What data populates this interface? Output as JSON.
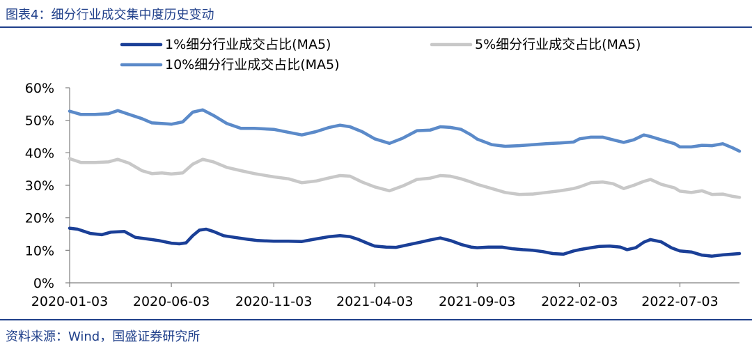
{
  "figure": {
    "title": "图表4：细分行业成交集中度历史变动",
    "source": "资料来源：Wind，国盛证券研究所"
  },
  "colors": {
    "accent": "#1f3f8a",
    "series_1pct": "#1a3f97",
    "series_5pct": "#c8c8c8",
    "series_10pct": "#5b8ac9"
  },
  "chart_data": {
    "type": "line",
    "title": "",
    "xlabel": "",
    "ylabel": "",
    "ylim": [
      0,
      60
    ],
    "yticks": [
      "0%",
      "10%",
      "20%",
      "30%",
      "40%",
      "50%",
      "60%"
    ],
    "xticks": [
      "2020-01-03",
      "2020-06-03",
      "2020-11-03",
      "2021-04-03",
      "2021-09-03",
      "2022-02-03",
      "2022-07-03"
    ],
    "xrange": [
      "2020-01-03",
      "2022-09-30"
    ],
    "legend_position": "top",
    "grid": false,
    "series": [
      {
        "name": "1%细分行业成交占比(MA5)",
        "color": "#1a3f97",
        "points": [
          [
            "2020-01-03",
            16.8
          ],
          [
            "2020-01-15",
            16.5
          ],
          [
            "2020-02-03",
            15.2
          ],
          [
            "2020-02-20",
            14.8
          ],
          [
            "2020-03-05",
            15.6
          ],
          [
            "2020-03-25",
            15.8
          ],
          [
            "2020-04-10",
            14.0
          ],
          [
            "2020-04-28",
            13.5
          ],
          [
            "2020-05-15",
            13.0
          ],
          [
            "2020-06-03",
            12.2
          ],
          [
            "2020-06-15",
            12.0
          ],
          [
            "2020-06-25",
            12.3
          ],
          [
            "2020-07-05",
            14.5
          ],
          [
            "2020-07-15",
            16.2
          ],
          [
            "2020-07-25",
            16.5
          ],
          [
            "2020-08-05",
            15.8
          ],
          [
            "2020-08-20",
            14.5
          ],
          [
            "2020-09-05",
            14.0
          ],
          [
            "2020-09-25",
            13.4
          ],
          [
            "2020-10-10",
            13.0
          ],
          [
            "2020-11-03",
            12.8
          ],
          [
            "2020-11-25",
            12.8
          ],
          [
            "2020-12-15",
            12.7
          ],
          [
            "2021-01-05",
            13.5
          ],
          [
            "2021-01-25",
            14.2
          ],
          [
            "2021-02-10",
            14.5
          ],
          [
            "2021-02-25",
            14.2
          ],
          [
            "2021-03-10",
            13.3
          ],
          [
            "2021-03-25",
            12.0
          ],
          [
            "2021-04-03",
            11.3
          ],
          [
            "2021-04-20",
            11.0
          ],
          [
            "2021-05-05",
            10.9
          ],
          [
            "2021-05-25",
            11.8
          ],
          [
            "2021-06-10",
            12.5
          ],
          [
            "2021-06-25",
            13.2
          ],
          [
            "2021-07-10",
            13.8
          ],
          [
            "2021-07-25",
            13.0
          ],
          [
            "2021-08-10",
            11.8
          ],
          [
            "2021-08-25",
            11.0
          ],
          [
            "2021-09-03",
            10.8
          ],
          [
            "2021-09-20",
            11.0
          ],
          [
            "2021-10-10",
            11.0
          ],
          [
            "2021-10-25",
            10.5
          ],
          [
            "2021-11-10",
            10.2
          ],
          [
            "2021-11-25",
            10.0
          ],
          [
            "2021-12-10",
            9.6
          ],
          [
            "2021-12-25",
            9.0
          ],
          [
            "2022-01-10",
            8.8
          ],
          [
            "2022-01-25",
            9.8
          ],
          [
            "2022-02-03",
            10.2
          ],
          [
            "2022-02-20",
            10.8
          ],
          [
            "2022-03-05",
            11.2
          ],
          [
            "2022-03-20",
            11.3
          ],
          [
            "2022-04-05",
            11.0
          ],
          [
            "2022-04-15",
            10.2
          ],
          [
            "2022-04-28",
            10.8
          ],
          [
            "2022-05-10",
            12.5
          ],
          [
            "2022-05-20",
            13.3
          ],
          [
            "2022-06-05",
            12.6
          ],
          [
            "2022-06-20",
            10.8
          ],
          [
            "2022-07-03",
            9.8
          ],
          [
            "2022-07-20",
            9.5
          ],
          [
            "2022-08-05",
            8.5
          ],
          [
            "2022-08-20",
            8.2
          ],
          [
            "2022-09-05",
            8.6
          ],
          [
            "2022-09-30",
            9.0
          ]
        ]
      },
      {
        "name": "5%细分行业成交占比(MA5)",
        "color": "#c8c8c8",
        "points": [
          [
            "2020-01-03",
            38.2
          ],
          [
            "2020-01-20",
            37.0
          ],
          [
            "2020-02-10",
            37.0
          ],
          [
            "2020-03-01",
            37.2
          ],
          [
            "2020-03-15",
            38.0
          ],
          [
            "2020-04-01",
            36.8
          ],
          [
            "2020-04-20",
            34.5
          ],
          [
            "2020-05-05",
            33.6
          ],
          [
            "2020-05-20",
            33.8
          ],
          [
            "2020-06-03",
            33.5
          ],
          [
            "2020-06-20",
            33.8
          ],
          [
            "2020-07-05",
            36.5
          ],
          [
            "2020-07-20",
            38.0
          ],
          [
            "2020-08-05",
            37.2
          ],
          [
            "2020-08-25",
            35.5
          ],
          [
            "2020-09-15",
            34.5
          ],
          [
            "2020-10-05",
            33.6
          ],
          [
            "2020-11-03",
            32.6
          ],
          [
            "2020-11-25",
            32.0
          ],
          [
            "2020-12-15",
            30.8
          ],
          [
            "2021-01-05",
            31.3
          ],
          [
            "2021-01-25",
            32.3
          ],
          [
            "2021-02-10",
            33.0
          ],
          [
            "2021-02-25",
            32.8
          ],
          [
            "2021-03-15",
            31.0
          ],
          [
            "2021-04-03",
            29.5
          ],
          [
            "2021-04-25",
            28.3
          ],
          [
            "2021-05-15",
            29.8
          ],
          [
            "2021-06-05",
            31.8
          ],
          [
            "2021-06-25",
            32.2
          ],
          [
            "2021-07-10",
            33.0
          ],
          [
            "2021-07-25",
            32.8
          ],
          [
            "2021-08-10",
            32.0
          ],
          [
            "2021-08-25",
            31.0
          ],
          [
            "2021-09-03",
            30.3
          ],
          [
            "2021-09-25",
            29.0
          ],
          [
            "2021-10-15",
            27.8
          ],
          [
            "2021-11-05",
            27.2
          ],
          [
            "2021-11-25",
            27.3
          ],
          [
            "2021-12-15",
            27.8
          ],
          [
            "2022-01-05",
            28.3
          ],
          [
            "2022-01-25",
            29.0
          ],
          [
            "2022-02-03",
            29.5
          ],
          [
            "2022-02-20",
            30.8
          ],
          [
            "2022-03-10",
            31.0
          ],
          [
            "2022-03-25",
            30.5
          ],
          [
            "2022-04-10",
            29.0
          ],
          [
            "2022-04-25",
            30.0
          ],
          [
            "2022-05-10",
            31.2
          ],
          [
            "2022-05-20",
            31.8
          ],
          [
            "2022-06-05",
            30.3
          ],
          [
            "2022-06-25",
            29.2
          ],
          [
            "2022-07-03",
            28.2
          ],
          [
            "2022-07-20",
            27.8
          ],
          [
            "2022-08-05",
            28.3
          ],
          [
            "2022-08-20",
            27.2
          ],
          [
            "2022-09-05",
            27.3
          ],
          [
            "2022-09-20",
            26.6
          ],
          [
            "2022-09-30",
            26.3
          ]
        ]
      },
      {
        "name": "10%细分行业成交占比(MA5)",
        "color": "#5b8ac9",
        "points": [
          [
            "2020-01-03",
            52.8
          ],
          [
            "2020-01-20",
            51.8
          ],
          [
            "2020-02-10",
            51.8
          ],
          [
            "2020-03-01",
            52.0
          ],
          [
            "2020-03-15",
            53.0
          ],
          [
            "2020-04-01",
            51.8
          ],
          [
            "2020-04-20",
            50.5
          ],
          [
            "2020-05-05",
            49.2
          ],
          [
            "2020-05-20",
            49.0
          ],
          [
            "2020-06-03",
            48.8
          ],
          [
            "2020-06-20",
            49.5
          ],
          [
            "2020-07-05",
            52.5
          ],
          [
            "2020-07-20",
            53.2
          ],
          [
            "2020-08-05",
            51.5
          ],
          [
            "2020-08-25",
            49.0
          ],
          [
            "2020-09-15",
            47.5
          ],
          [
            "2020-10-05",
            47.5
          ],
          [
            "2020-11-03",
            47.2
          ],
          [
            "2020-11-25",
            46.3
          ],
          [
            "2020-12-15",
            45.5
          ],
          [
            "2021-01-05",
            46.5
          ],
          [
            "2021-01-25",
            47.8
          ],
          [
            "2021-02-10",
            48.5
          ],
          [
            "2021-02-25",
            48.0
          ],
          [
            "2021-03-15",
            46.5
          ],
          [
            "2021-04-03",
            44.3
          ],
          [
            "2021-04-25",
            42.9
          ],
          [
            "2021-05-15",
            44.5
          ],
          [
            "2021-06-05",
            46.8
          ],
          [
            "2021-06-25",
            47.0
          ],
          [
            "2021-07-10",
            48.0
          ],
          [
            "2021-07-25",
            47.8
          ],
          [
            "2021-08-10",
            47.2
          ],
          [
            "2021-08-25",
            45.5
          ],
          [
            "2021-09-03",
            44.2
          ],
          [
            "2021-09-25",
            42.5
          ],
          [
            "2021-10-15",
            42.0
          ],
          [
            "2021-11-05",
            42.2
          ],
          [
            "2021-11-25",
            42.5
          ],
          [
            "2021-12-15",
            42.8
          ],
          [
            "2022-01-05",
            43.0
          ],
          [
            "2022-01-25",
            43.3
          ],
          [
            "2022-02-03",
            44.3
          ],
          [
            "2022-02-20",
            44.8
          ],
          [
            "2022-03-10",
            44.8
          ],
          [
            "2022-03-25",
            44.0
          ],
          [
            "2022-04-10",
            43.2
          ],
          [
            "2022-04-25",
            44.0
          ],
          [
            "2022-05-10",
            45.5
          ],
          [
            "2022-05-20",
            45.0
          ],
          [
            "2022-06-05",
            44.0
          ],
          [
            "2022-06-25",
            42.8
          ],
          [
            "2022-07-03",
            41.8
          ],
          [
            "2022-07-20",
            41.8
          ],
          [
            "2022-08-05",
            42.3
          ],
          [
            "2022-08-20",
            42.2
          ],
          [
            "2022-09-05",
            42.8
          ],
          [
            "2022-09-20",
            41.5
          ],
          [
            "2022-09-30",
            40.5
          ]
        ]
      }
    ]
  }
}
